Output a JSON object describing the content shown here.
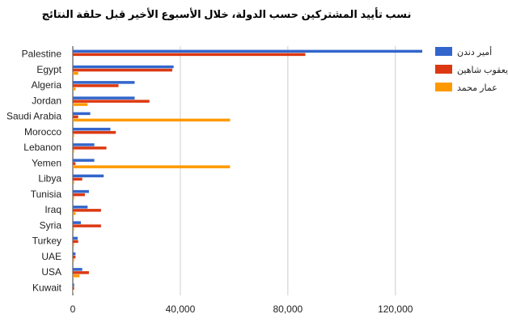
{
  "chart_data": {
    "type": "bar",
    "orientation": "horizontal",
    "title": "نسب تأييد المشتركين حسب الدولة، خلال الأسبوع الأخير قبل حلقة النتائج",
    "xlabel": "",
    "ylabel": "",
    "xlim": [
      0,
      130000
    ],
    "xticks": [
      0,
      40000,
      80000,
      120000
    ],
    "xtick_labels": [
      "0",
      "40,000",
      "80,000",
      "120,000"
    ],
    "grid": true,
    "legend_position": "right",
    "categories": [
      "Palestine",
      "Egypt",
      "Algeria",
      "Jordan",
      "Saudi Arabia",
      "Morocco",
      "Lebanon",
      "Yemen",
      "Libya",
      "Tunisia",
      "Iraq",
      "Syria",
      "Turkey",
      "UAE",
      "USA",
      "Kuwait"
    ],
    "series": [
      {
        "name": "أمير دندن",
        "color": "#3366cc",
        "values": [
          130000,
          37500,
          23000,
          23000,
          6500,
          14000,
          8000,
          8000,
          11500,
          6000,
          5500,
          3000,
          1800,
          1000,
          3500,
          500
        ]
      },
      {
        "name": "يعقوب شاهين",
        "color": "#dc3912",
        "values": [
          86500,
          37000,
          17000,
          28500,
          2000,
          16000,
          12500,
          1000,
          3500,
          4500,
          10500,
          10500,
          2000,
          1000,
          6000,
          500
        ]
      },
      {
        "name": "عمار محمد",
        "color": "#ff9900",
        "values": [
          0,
          2000,
          1000,
          5500,
          58500,
          500,
          500,
          58500,
          500,
          500,
          1000,
          500,
          500,
          500,
          2500,
          200
        ]
      }
    ]
  }
}
